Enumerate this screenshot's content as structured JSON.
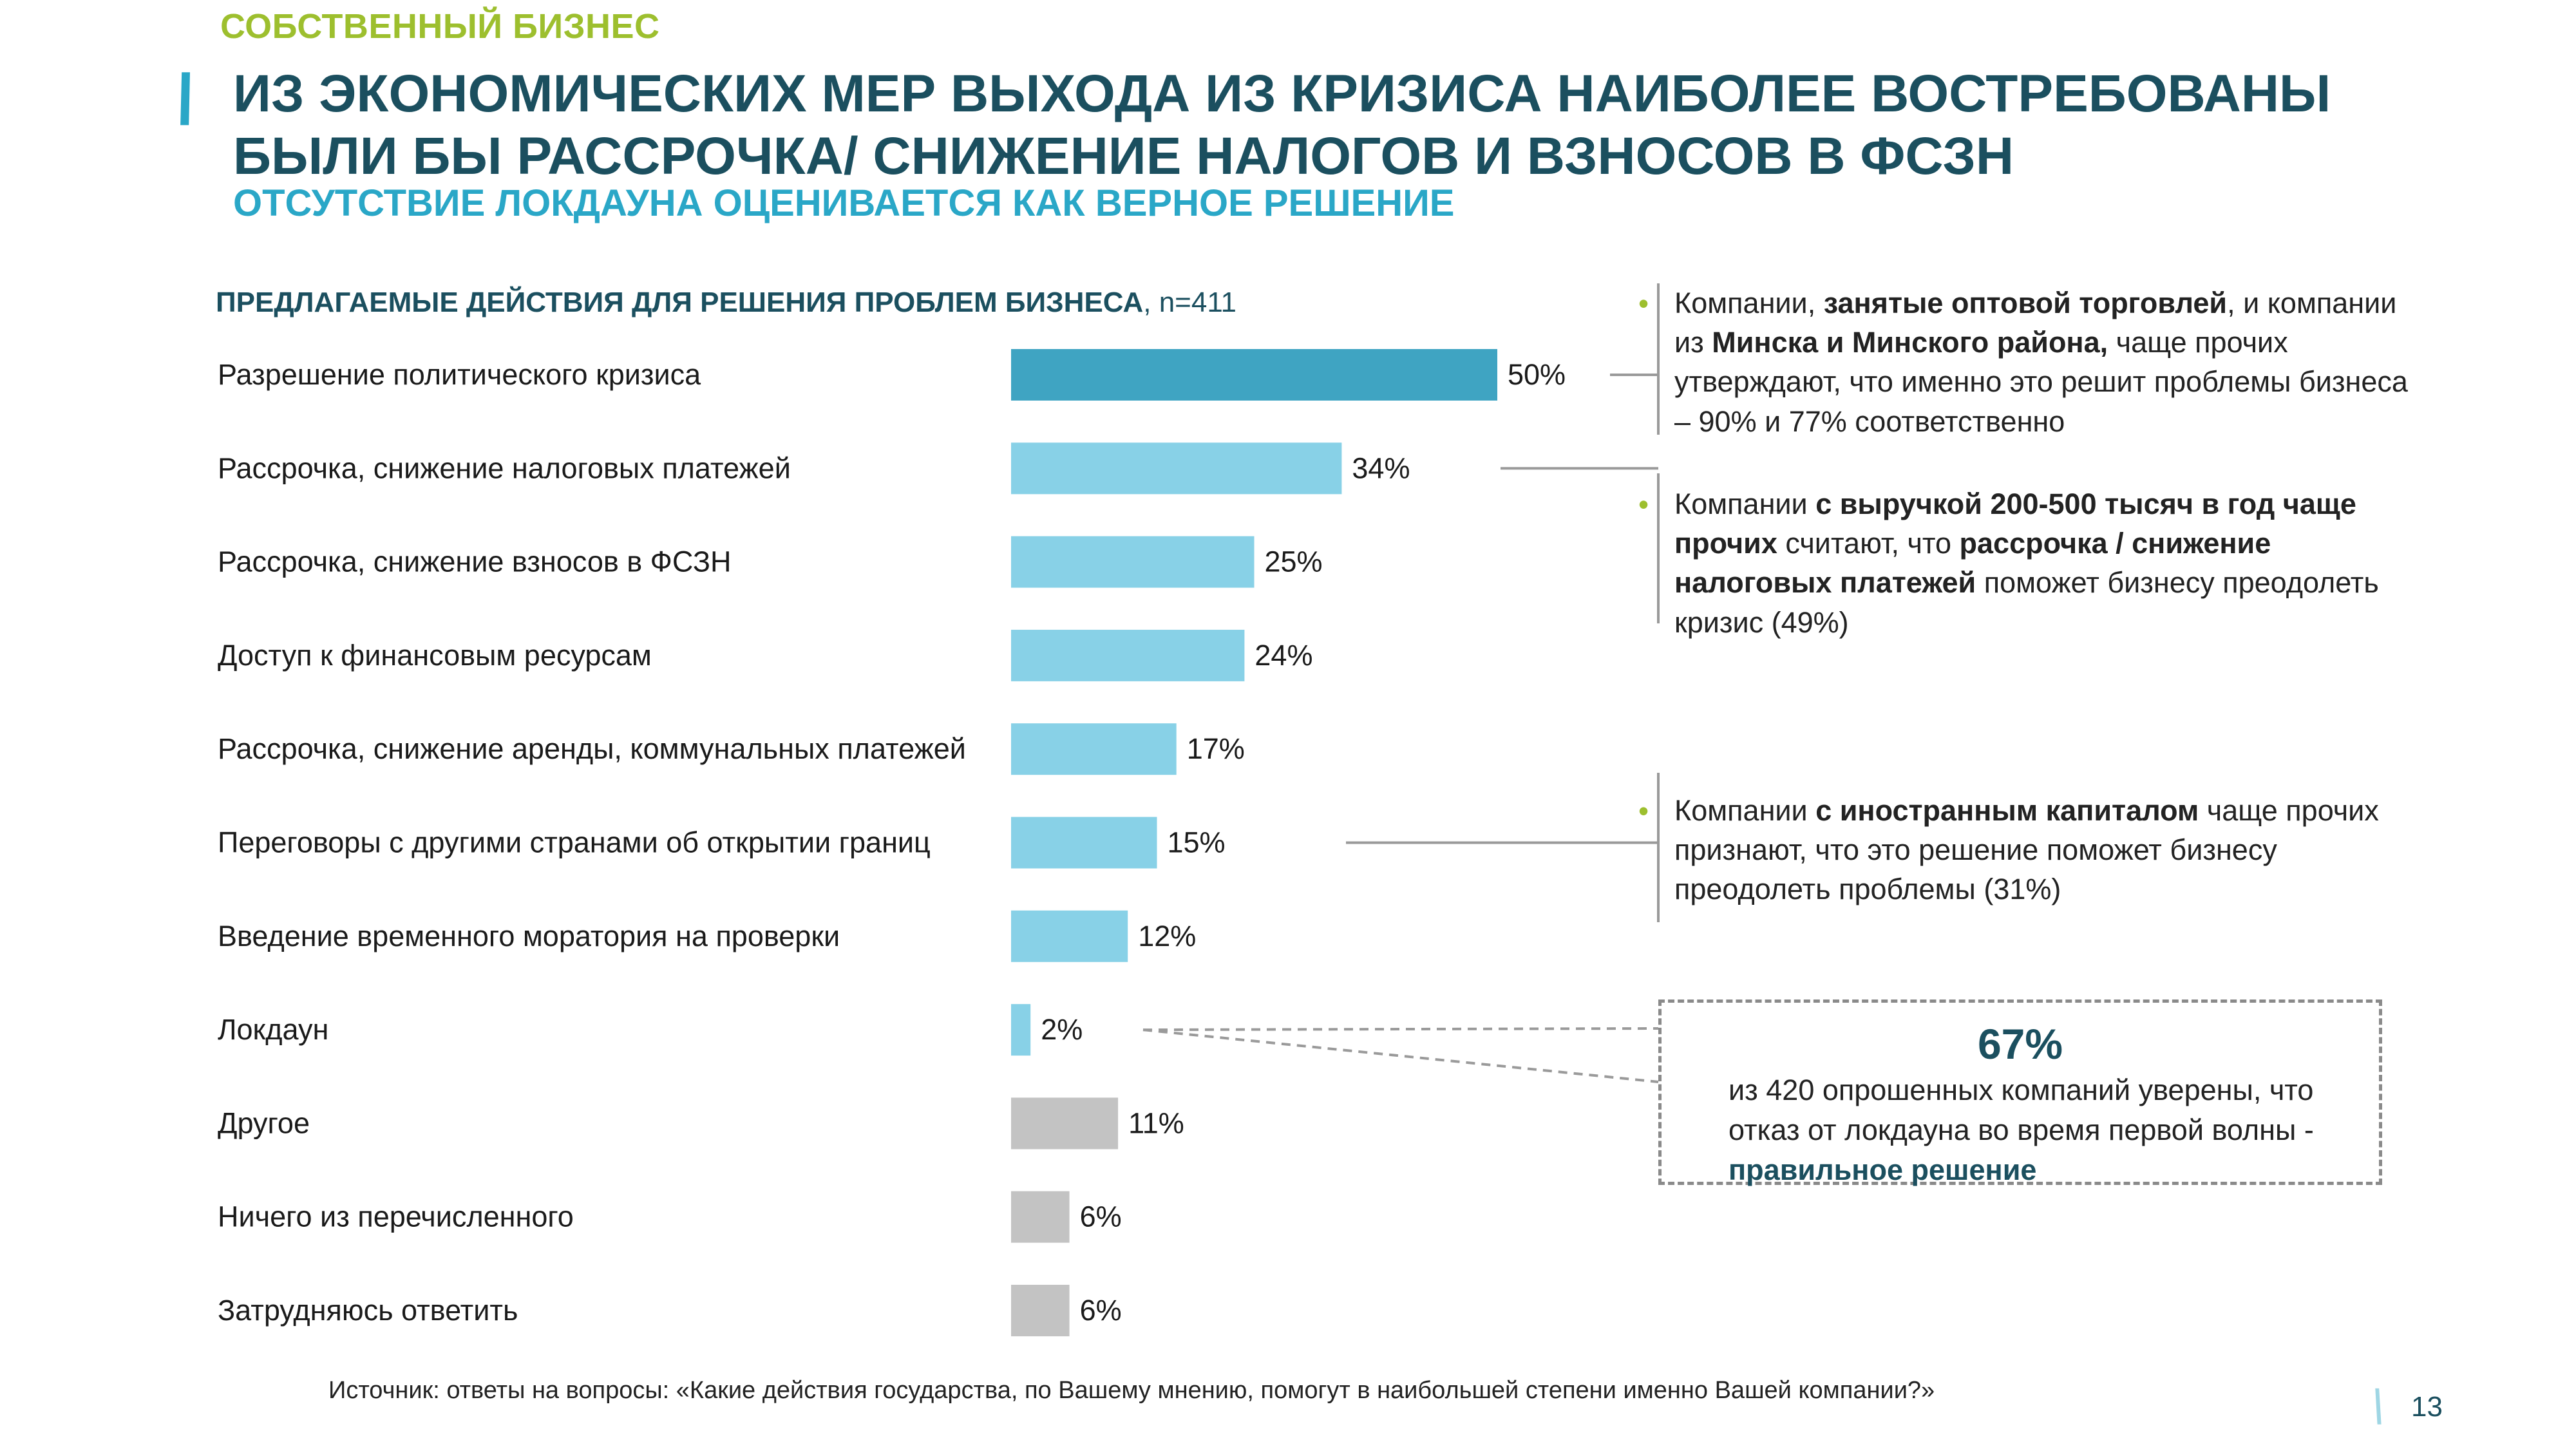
{
  "header": {
    "section_label": "СОБСТВЕННЫЙ БИЗНЕС",
    "title": "ИЗ ЭКОНОМИЧЕСКИХ МЕР ВЫХОДА ИЗ КРИЗИСА НАИБОЛЕЕ ВОСТРЕБОВАНЫ БЫЛИ БЫ РАССРОЧКА/ СНИЖЕНИЕ НАЛОГОВ И ВЗНОСОВ В ФСЗН",
    "subtitle": "ОТСУТСТВИЕ ЛОКДАУНА ОЦЕНИВАЕТСЯ КАК ВЕРНОЕ РЕШЕНИЕ"
  },
  "chart_heading": {
    "text": "ПРЕДЛАГАЕМЫЕ ДЕЙСТВИЯ ДЛЯ РЕШЕНИЯ ПРОБЛЕМ БИЗНЕСА",
    "sample": ", n=411"
  },
  "chart_data": {
    "type": "bar",
    "orientation": "horizontal",
    "title": "ПРЕДЛАГАЕМЫЕ ДЕЙСТВИЯ ДЛЯ РЕШЕНИЯ ПРОБЛЕМ БИЗНЕСА, n=411",
    "categories": [
      "Разрешение политического кризиса",
      "Рассрочка, снижение налоговых платежей",
      "Рассрочка, снижение взносов в ФСЗН",
      "Доступ к финансовым ресурсам",
      "Рассрочка, снижение аренды, коммунальных платежей",
      "Переговоры с другими странами об открытии границ",
      "Введение временного моратория на проверки",
      "Локдаун",
      "Другое",
      "Ничего из перечисленного",
      "Затрудняюсь ответить"
    ],
    "values": [
      50,
      34,
      25,
      24,
      17,
      15,
      12,
      2,
      11,
      6,
      6
    ],
    "value_labels": [
      "50%",
      "34%",
      "25%",
      "24%",
      "17%",
      "15%",
      "12%",
      "2%",
      "11%",
      "6%",
      "6%"
    ],
    "unit": "%",
    "xlim": [
      0,
      50
    ],
    "grid": false,
    "colors": [
      "#3fa4c2",
      "#88d1e7",
      "#88d1e7",
      "#88d1e7",
      "#88d1e7",
      "#88d1e7",
      "#88d1e7",
      "#88d1e7",
      "#c3c3c3",
      "#c3c3c3",
      "#c3c3c3"
    ]
  },
  "colors": {
    "accent_green": "#9dbf2e",
    "title_dark": "#1b4f5f",
    "accent_blue": "#2aa7c7",
    "bar_highlight": "#3fa4c2",
    "bar_regular": "#88d1e7",
    "bar_other": "#c3c3c3"
  },
  "annotations": [
    {
      "parts": [
        {
          "t": "Компании,  ",
          "b": false
        },
        {
          "t": "занятые оптовой торговлей",
          "b": true
        },
        {
          "t": ", и компании из ",
          "b": false
        },
        {
          "t": "Минска и Минского района,",
          "b": true
        },
        {
          "t": " чаще прочих утверждают, что именно это решит проблемы бизнеса – 90% и 77% соответственно",
          "b": false
        }
      ]
    },
    {
      "parts": [
        {
          "t": "Компании ",
          "b": false
        },
        {
          "t": "с выручкой 200-500 тысяч в год чаще прочих",
          "b": true
        },
        {
          "t": " считают, что ",
          "b": false
        },
        {
          "t": "рассрочка / снижение налоговых платежей",
          "b": true
        },
        {
          "t": " поможет бизнесу преодолеть кризис (49%)",
          "b": false
        }
      ]
    },
    {
      "parts": [
        {
          "t": "Компании ",
          "b": false
        },
        {
          "t": "с иностранным капиталом",
          "b": true
        },
        {
          "t": " чаще прочих признают, что это решение поможет бизнесу преодолеть проблемы (31%)",
          "b": false
        }
      ]
    }
  ],
  "bullet_glyph": "•",
  "lockdown_box": {
    "percent": "67%",
    "text": "из 420 опрошенных компаний уверены, что отказ от локдауна во время первой волны - ",
    "highlight": "правильное решение"
  },
  "footer": {
    "source": "Источник: ответы на вопросы: «Какие действия государства, по Вашему мнению, помогут в наибольшей степени именно Вашей компании?»",
    "page_number": "13"
  }
}
